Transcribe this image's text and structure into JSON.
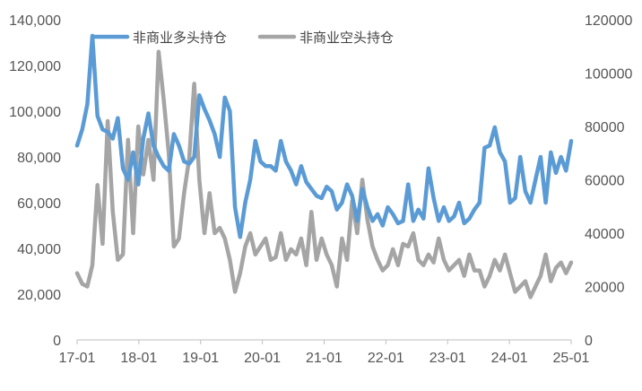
{
  "chart_data": {
    "type": "line",
    "title": "",
    "xlabel": "",
    "ylabel": "",
    "x_ticks": [
      "17-01",
      "18-01",
      "19-01",
      "20-01",
      "21-01",
      "22-01",
      "23-01",
      "24-01",
      "25-01"
    ],
    "x_range": [
      0,
      97
    ],
    "y_left": {
      "range": [
        0,
        140000
      ],
      "ticks": [
        "0",
        "20,000",
        "40,000",
        "60,000",
        "80,000",
        "100,000",
        "120,000",
        "140,000"
      ]
    },
    "y_right": {
      "range": [
        0,
        120000
      ],
      "ticks": [
        "0",
        "20000",
        "40000",
        "60000",
        "80000",
        "100000",
        "120000"
      ]
    },
    "legend": {
      "placement": "top"
    },
    "series": [
      {
        "name": "非商业多头持仓",
        "axis": "left",
        "color": "#5b9bd5",
        "x": [
          0,
          1,
          2,
          3,
          4,
          5,
          6,
          7,
          8,
          9,
          10,
          11,
          12,
          13,
          14,
          15,
          16,
          17,
          18,
          19,
          20,
          21,
          22,
          23,
          24,
          25,
          26,
          27,
          28,
          29,
          30,
          31,
          32,
          33,
          34,
          35,
          36,
          37,
          38,
          39,
          40,
          41,
          42,
          43,
          44,
          45,
          46,
          47,
          48,
          49,
          50,
          51,
          52,
          53,
          54,
          55,
          56,
          57,
          58,
          59,
          60,
          61,
          62,
          63,
          64,
          65,
          66,
          67,
          68,
          69,
          70,
          71,
          72,
          73,
          74,
          75,
          76,
          77,
          78,
          79,
          80,
          81,
          82,
          83,
          84,
          85,
          86,
          87,
          88,
          89,
          90,
          91,
          92,
          93,
          94,
          95,
          96,
          97
        ],
        "values": [
          85000,
          92000,
          103000,
          133000,
          98000,
          92000,
          91000,
          88000,
          97000,
          75000,
          70000,
          82000,
          68000,
          88000,
          99000,
          85000,
          80000,
          76000,
          74000,
          90000,
          85000,
          78000,
          77000,
          80000,
          107000,
          101000,
          96000,
          90000,
          80000,
          106000,
          100000,
          58000,
          45000,
          60000,
          70000,
          87000,
          78000,
          76000,
          76000,
          74000,
          87000,
          78000,
          74000,
          68000,
          76000,
          69000,
          66000,
          63000,
          62000,
          67000,
          65000,
          57000,
          60000,
          68000,
          63000,
          52000,
          66000,
          58000,
          52000,
          55000,
          50000,
          58000,
          55000,
          51000,
          52000,
          68000,
          52000,
          57000,
          53000,
          75000,
          62000,
          52000,
          58000,
          52000,
          54000,
          60000,
          51000,
          53000,
          57000,
          60000,
          84000,
          85000,
          93000,
          82000,
          78000,
          60000,
          62000,
          80000,
          65000,
          60000,
          70000,
          80000,
          60000,
          82000,
          73000,
          80000,
          74000,
          87000
        ]
      },
      {
        "name": "非商业空头持仓",
        "axis": "right",
        "color": "#a5a5a5",
        "x": [
          0,
          1,
          2,
          3,
          4,
          5,
          6,
          7,
          8,
          9,
          10,
          11,
          12,
          13,
          14,
          15,
          16,
          17,
          18,
          19,
          20,
          21,
          22,
          23,
          24,
          25,
          26,
          27,
          28,
          29,
          30,
          31,
          32,
          33,
          34,
          35,
          36,
          37,
          38,
          39,
          40,
          41,
          42,
          43,
          44,
          45,
          46,
          47,
          48,
          49,
          50,
          51,
          52,
          53,
          54,
          55,
          56,
          57,
          58,
          59,
          60,
          61,
          62,
          63,
          64,
          65,
          66,
          67,
          68,
          69,
          70,
          71,
          72,
          73,
          74,
          75,
          76,
          77,
          78,
          79,
          80,
          81,
          82,
          83,
          84,
          85,
          86,
          87,
          88,
          89,
          90,
          91,
          92,
          93,
          94,
          95,
          96,
          97
        ],
        "values": [
          25000,
          21000,
          20000,
          28000,
          58000,
          36000,
          82000,
          48000,
          30000,
          32000,
          75000,
          40000,
          80000,
          62000,
          75000,
          60000,
          108000,
          90000,
          70000,
          35000,
          38000,
          55000,
          68000,
          96000,
          60000,
          40000,
          55000,
          40000,
          42000,
          38000,
          30000,
          18000,
          25000,
          35000,
          40000,
          32000,
          35000,
          38000,
          30000,
          31000,
          40000,
          30000,
          34000,
          32000,
          38000,
          28000,
          48000,
          30000,
          38000,
          32000,
          28000,
          20000,
          38000,
          30000,
          52000,
          40000,
          60000,
          45000,
          35000,
          30000,
          26000,
          28000,
          34000,
          28000,
          36000,
          35000,
          40000,
          30000,
          28000,
          32000,
          29000,
          38000,
          30000,
          26000,
          28000,
          30000,
          24000,
          32000,
          26000,
          26000,
          20000,
          24000,
          30000,
          26000,
          32000,
          25000,
          18000,
          20000,
          22000,
          16000,
          20000,
          24000,
          32000,
          22000,
          27000,
          29000,
          25000,
          29000
        ]
      }
    ]
  }
}
